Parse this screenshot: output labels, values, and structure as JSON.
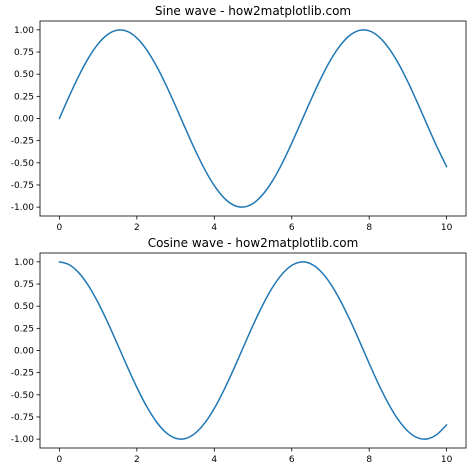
{
  "chart_data": [
    {
      "type": "line",
      "title": "Sine wave - how2matplotlib.com",
      "xlabel": "",
      "ylabel": "",
      "xlim": [
        -0.5,
        10.5
      ],
      "ylim": [
        -1.1,
        1.1
      ],
      "xticks": [
        0,
        2,
        4,
        6,
        8,
        10
      ],
      "xtick_labels": [
        "0",
        "2",
        "4",
        "6",
        "8",
        "10"
      ],
      "yticks": [
        1.0,
        0.75,
        0.5,
        0.25,
        0.0,
        -0.25,
        -0.5,
        -0.75,
        -1.0
      ],
      "ytick_labels": [
        "1.00",
        "0.75",
        "0.50",
        "0.25",
        "0.00",
        "-0.25",
        "-0.50",
        "-0.75",
        "-1.00"
      ],
      "grid": false,
      "color": "#1f77b4",
      "series": [
        {
          "x": [
            0,
            0.25,
            0.5,
            0.75,
            1,
            1.25,
            1.5,
            1.75,
            2,
            2.25,
            2.5,
            2.75,
            3,
            3.25,
            3.5,
            3.75,
            4,
            4.25,
            4.5,
            4.75,
            5,
            5.25,
            5.5,
            5.75,
            6,
            6.25,
            6.5,
            6.75,
            7,
            7.25,
            7.5,
            7.75,
            8,
            8.25,
            8.5,
            8.75,
            9,
            9.25,
            9.5,
            9.75,
            10
          ],
          "y": [
            0,
            0.247,
            0.479,
            0.682,
            0.841,
            0.949,
            0.997,
            0.984,
            0.909,
            0.778,
            0.598,
            0.382,
            0.141,
            -0.108,
            -0.351,
            -0.572,
            -0.757,
            -0.895,
            -0.978,
            -0.999,
            -0.959,
            -0.859,
            -0.706,
            -0.508,
            -0.279,
            -0.033,
            0.215,
            0.45,
            0.657,
            0.823,
            0.938,
            0.995,
            0.989,
            0.922,
            0.798,
            0.625,
            0.412,
            0.174,
            -0.075,
            -0.32,
            -0.544
          ]
        }
      ]
    },
    {
      "type": "line",
      "title": "Cosine wave - how2matplotlib.com",
      "xlabel": "",
      "ylabel": "",
      "xlim": [
        -0.5,
        10.5
      ],
      "ylim": [
        -1.1,
        1.1
      ],
      "xticks": [
        0,
        2,
        4,
        6,
        8,
        10
      ],
      "xtick_labels": [
        "0",
        "2",
        "4",
        "6",
        "8",
        "10"
      ],
      "yticks": [
        1.0,
        0.75,
        0.5,
        0.25,
        0.0,
        -0.25,
        -0.5,
        -0.75,
        -1.0
      ],
      "ytick_labels": [
        "1.00",
        "0.75",
        "0.50",
        "0.25",
        "0.00",
        "-0.25",
        "-0.50",
        "-0.75",
        "-1.00"
      ],
      "grid": false,
      "color": "#1f77b4",
      "series": [
        {
          "x": [
            0,
            0.25,
            0.5,
            0.75,
            1,
            1.25,
            1.5,
            1.75,
            2,
            2.25,
            2.5,
            2.75,
            3,
            3.25,
            3.5,
            3.75,
            4,
            4.25,
            4.5,
            4.75,
            5,
            5.25,
            5.5,
            5.75,
            6,
            6.25,
            6.5,
            6.75,
            7,
            7.25,
            7.5,
            7.75,
            8,
            8.25,
            8.5,
            8.75,
            9,
            9.25,
            9.5,
            9.75,
            10
          ],
          "y": [
            1,
            0.969,
            0.878,
            0.732,
            0.54,
            0.315,
            0.071,
            -0.178,
            -0.416,
            -0.628,
            -0.801,
            -0.924,
            -0.99,
            -0.994,
            -0.936,
            -0.82,
            -0.654,
            -0.446,
            -0.211,
            0.037,
            0.284,
            0.512,
            0.709,
            0.861,
            0.96,
            0.999,
            0.977,
            0.893,
            0.754,
            0.567,
            0.347,
            0.105,
            -0.146,
            -0.387,
            -0.602,
            -0.781,
            -0.911,
            -0.985,
            -0.997,
            -0.947,
            -0.839
          ]
        }
      ]
    }
  ]
}
